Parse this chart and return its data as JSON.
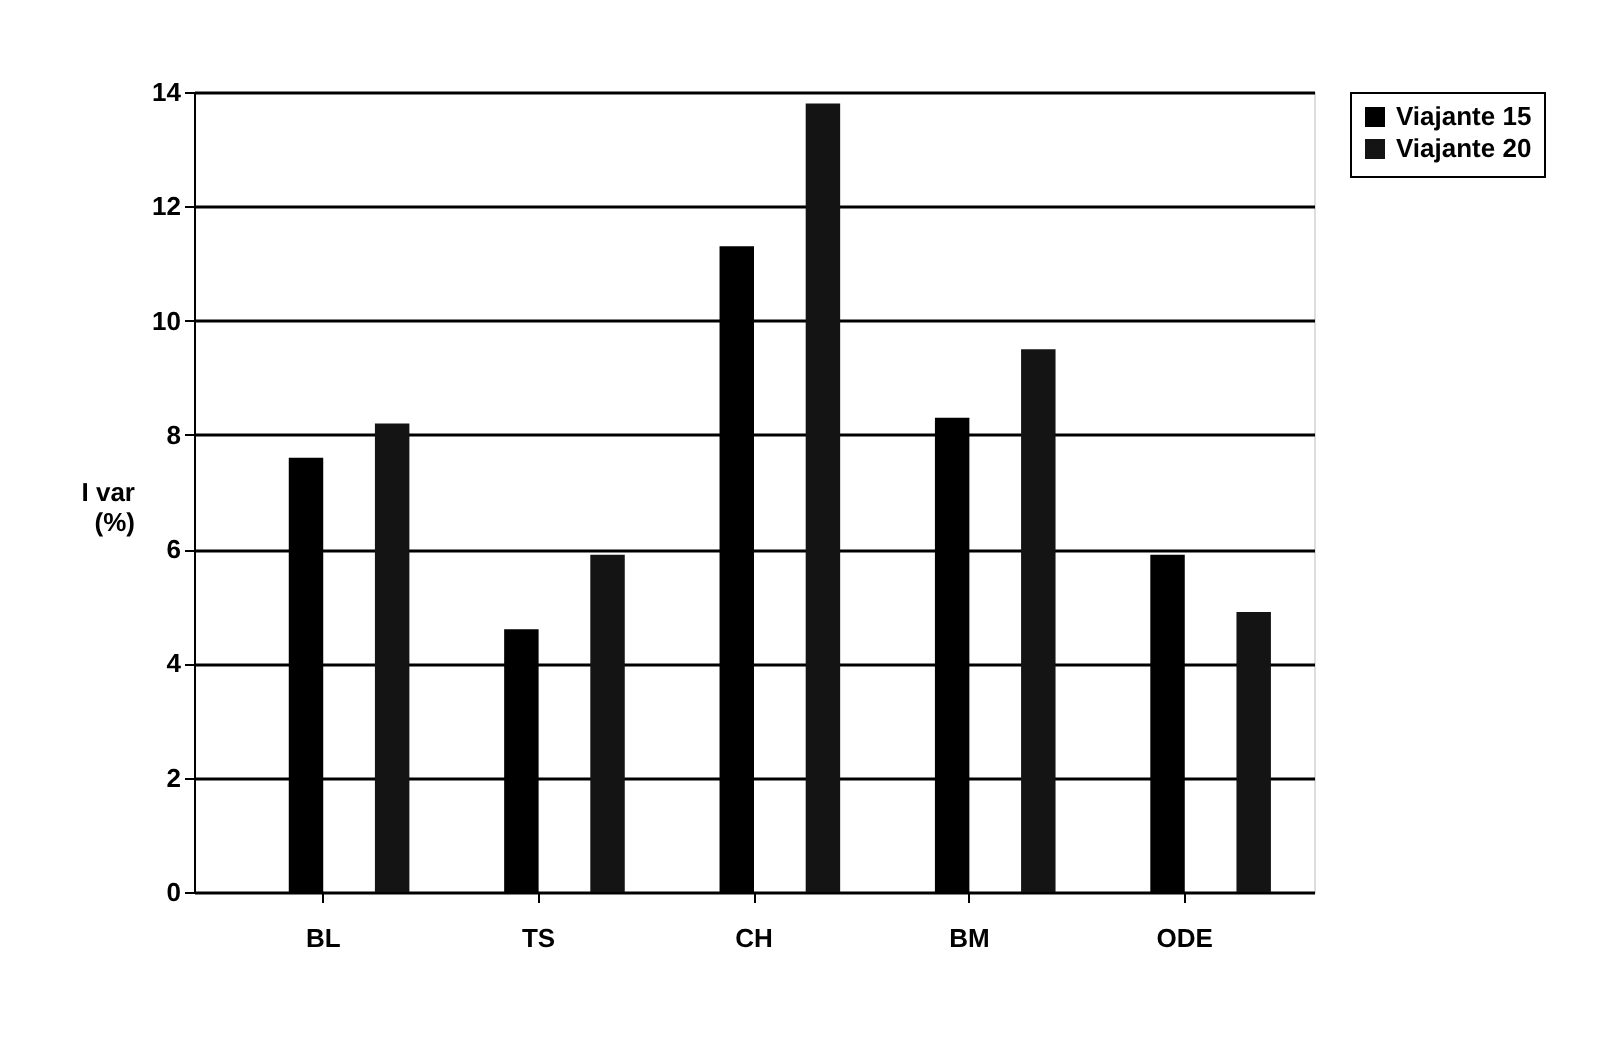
{
  "chart_data": {
    "type": "bar",
    "ylabel": "I var (%)",
    "categories": [
      "BL",
      "TS",
      "CH",
      "BM",
      "ODE"
    ],
    "series": [
      {
        "name": "Viajante 15",
        "color": "#000000",
        "values": [
          7.6,
          4.6,
          11.3,
          8.3,
          5.9
        ]
      },
      {
        "name": "Viajante 20",
        "color": "#141414",
        "values": [
          8.2,
          5.9,
          13.8,
          9.5,
          4.9
        ]
      }
    ],
    "ylim": [
      0,
      14
    ],
    "yticks": [
      0,
      2,
      4,
      6,
      8,
      10,
      12,
      14
    ],
    "grid": "y",
    "legend": "right"
  }
}
